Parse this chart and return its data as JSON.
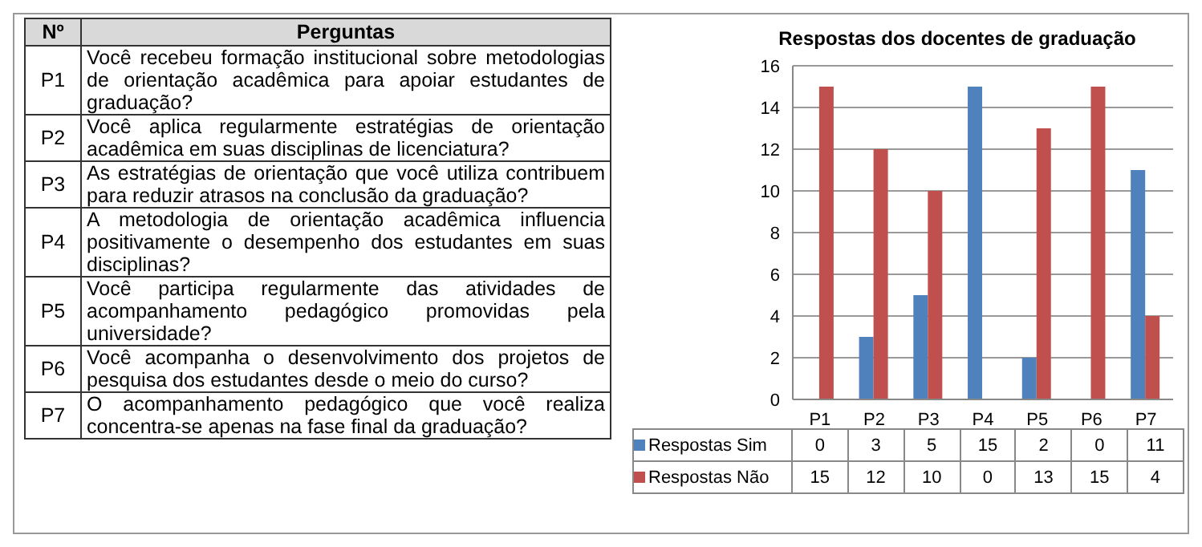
{
  "chart_data": [
    {
      "type": "other",
      "annotations": [
        "Nº",
        "Perguntas",
        "P1",
        "Você recebeu formação institucional sobre metodologias de orientação acadêmica para apoiar estudantes de graduação?",
        "P2",
        "Você aplica regularmente estratégias de orientação acadêmica em suas disciplinas de licenciatura?",
        "P3",
        "As estratégias de orientação que você utiliza contribuem para reduzir atrasos na conclusão da graduação?",
        "P4",
        "A metodologia de orientação acadêmica influencia positivamente o desempenho dos estudantes em suas disciplinas?",
        "P5",
        "Você participa regularmente das atividades de acompanhamento pedagógico promovidas pela universidade?",
        "P6",
        "Você acompanha o desenvolvimento dos projetos de pesquisa dos estudantes desde o meio do curso?",
        "P7",
        "O acompanhamento pedagógico que você realiza concentra-se apenas na fase final da graduação?"
      ]
    },
    {
      "type": "bar",
      "title": "Respostas dos docentes de graduação",
      "categories": [
        "P1",
        "P2",
        "P3",
        "P4",
        "P5",
        "P6",
        "P7"
      ],
      "series": [
        {
          "name": "Respostas  Sim",
          "color": "#4f81bd",
          "values": [
            0,
            3,
            5,
            15,
            2,
            0,
            11
          ]
        },
        {
          "name": "Respostas  Não",
          "color": "#c0504d",
          "values": [
            15,
            12,
            10,
            0,
            13,
            15,
            4
          ]
        }
      ],
      "ylim": [
        0,
        16
      ],
      "yticks": [
        0,
        2,
        4,
        6,
        8,
        10,
        12,
        14,
        16
      ],
      "grid": "y",
      "legend": "bottom",
      "data_labels": true
    }
  ]
}
